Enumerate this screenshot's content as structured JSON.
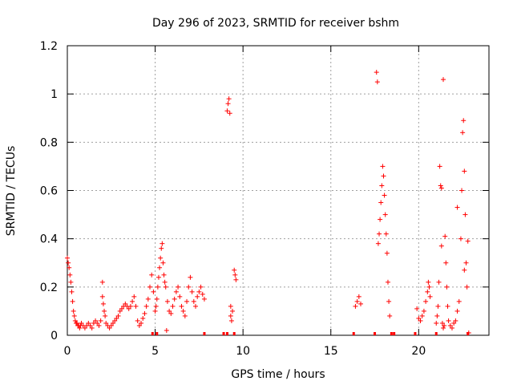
{
  "chart_data": {
    "type": "scatter",
    "title": "Day 296 of 2023, SRMTID for receiver bshm",
    "xlabel": "GPS time / hours",
    "ylabel": "SRMTID / TECUs",
    "xlim": [
      0,
      24
    ],
    "ylim": [
      0,
      1.2
    ],
    "x_ticks": [
      0,
      5,
      10,
      15,
      20
    ],
    "y_ticks": [
      0,
      0.2,
      0.4,
      0.6,
      0.8,
      1,
      1.2
    ],
    "x_tick_labels": [
      "0",
      "5",
      "10",
      "15",
      "20"
    ],
    "y_tick_labels": [
      "0",
      "0.2",
      "0.4",
      "0.6",
      "0.8",
      "1",
      "1.2"
    ],
    "grid": true,
    "legend": "none",
    "marker": "plus",
    "marker_color": "#ff0000",
    "series": [
      {
        "x": [
          0.0,
          0.05,
          0.1,
          0.15,
          0.2,
          0.25,
          0.3,
          0.35,
          0.4,
          0.45,
          0.5,
          0.55,
          0.6,
          0.65,
          0.7,
          0.75,
          0.8,
          0.9,
          1.0,
          1.1,
          1.2,
          1.3,
          1.4,
          1.5,
          1.6,
          1.7,
          1.8,
          1.9,
          2.0,
          2.0,
          2.05,
          2.1,
          2.15,
          2.2,
          2.3,
          2.4,
          2.5,
          2.6,
          2.7,
          2.8,
          2.9,
          3.0,
          3.1,
          3.2,
          3.3,
          3.4,
          3.5,
          3.6,
          3.7,
          3.8,
          3.9,
          4.0,
          4.1,
          4.2,
          4.3,
          4.4,
          4.5,
          4.6,
          4.7,
          4.8,
          4.9,
          5.0,
          5.05,
          5.1,
          5.15,
          5.2,
          5.25,
          5.3,
          5.35,
          5.4,
          5.45,
          5.5,
          5.55,
          5.6,
          5.65,
          5.7,
          5.8,
          5.9,
          6.0,
          6.1,
          6.2,
          6.3,
          6.4,
          6.5,
          6.6,
          6.7,
          6.8,
          6.9,
          7.0,
          7.1,
          7.2,
          7.3,
          7.4,
          7.5,
          7.6,
          7.7,
          7.8,
          9.1,
          9.15,
          9.2,
          9.25,
          9.3,
          9.3,
          9.35,
          9.4,
          9.5,
          9.55,
          9.6,
          16.4,
          16.5,
          16.6,
          16.7,
          17.6,
          17.65,
          17.7,
          17.75,
          17.8,
          17.85,
          17.9,
          17.95,
          18.0,
          18.05,
          18.1,
          18.15,
          18.2,
          18.25,
          18.3,
          18.35,
          19.9,
          20.0,
          20.1,
          20.2,
          20.3,
          20.4,
          20.5,
          20.55,
          20.6,
          20.65,
          21.0,
          21.05,
          21.1,
          21.15,
          21.2,
          21.25,
          21.3,
          21.35,
          21.4,
          21.45,
          21.5,
          21.55,
          21.6,
          21.65,
          21.7,
          21.8,
          21.9,
          22.0,
          22.1,
          22.2,
          22.3,
          22.4,
          22.45,
          22.5,
          22.55,
          22.6,
          22.65,
          22.7,
          22.75,
          22.8,
          22.85
        ],
        "y": [
          0.32,
          0.3,
          0.28,
          0.25,
          0.22,
          0.18,
          0.14,
          0.1,
          0.08,
          0.06,
          0.05,
          0.05,
          0.04,
          0.04,
          0.03,
          0.04,
          0.05,
          0.04,
          0.03,
          0.04,
          0.05,
          0.04,
          0.03,
          0.05,
          0.06,
          0.05,
          0.04,
          0.06,
          0.22,
          0.16,
          0.13,
          0.1,
          0.08,
          0.05,
          0.04,
          0.03,
          0.04,
          0.05,
          0.06,
          0.07,
          0.08,
          0.1,
          0.11,
          0.12,
          0.13,
          0.12,
          0.11,
          0.12,
          0.14,
          0.16,
          0.12,
          0.06,
          0.04,
          0.05,
          0.07,
          0.09,
          0.12,
          0.15,
          0.2,
          0.25,
          0.18,
          0.1,
          0.12,
          0.15,
          0.2,
          0.24,
          0.28,
          0.32,
          0.36,
          0.38,
          0.3,
          0.25,
          0.22,
          0.2,
          0.02,
          0.14,
          0.1,
          0.09,
          0.12,
          0.15,
          0.18,
          0.2,
          0.16,
          0.12,
          0.1,
          0.08,
          0.14,
          0.2,
          0.24,
          0.18,
          0.14,
          0.12,
          0.16,
          0.18,
          0.2,
          0.17,
          0.15,
          0.93,
          0.96,
          0.98,
          0.92,
          0.08,
          0.12,
          0.06,
          0.1,
          0.27,
          0.25,
          0.23,
          0.12,
          0.14,
          0.16,
          0.13,
          1.09,
          1.05,
          0.38,
          0.42,
          0.48,
          0.55,
          0.62,
          0.7,
          0.66,
          0.58,
          0.5,
          0.42,
          0.34,
          0.22,
          0.14,
          0.08,
          0.11,
          0.07,
          0.06,
          0.08,
          0.1,
          0.14,
          0.18,
          0.22,
          0.2,
          0.16,
          0.05,
          0.08,
          0.12,
          0.22,
          0.7,
          0.62,
          0.37,
          0.05,
          0.03,
          0.04,
          0.41,
          0.3,
          0.2,
          0.12,
          0.06,
          0.04,
          0.03,
          0.05,
          0.06,
          0.1,
          0.14,
          0.4,
          0.6,
          0.84,
          0.89,
          0.68,
          0.5,
          0.3,
          0.2,
          0.39,
          0.01
        ],
        "extra_points": {
          "x": [
            21.4,
            22.2,
            21.3,
            22.6
          ],
          "y": [
            1.06,
            0.53,
            0.61,
            0.27
          ]
        },
        "zero_markers_x": [
          4.85,
          5.1,
          7.8,
          8.9,
          9.1,
          9.5,
          16.3,
          17.5,
          18.45,
          18.6,
          19.8,
          21.0,
          22.8
        ]
      }
    ]
  }
}
